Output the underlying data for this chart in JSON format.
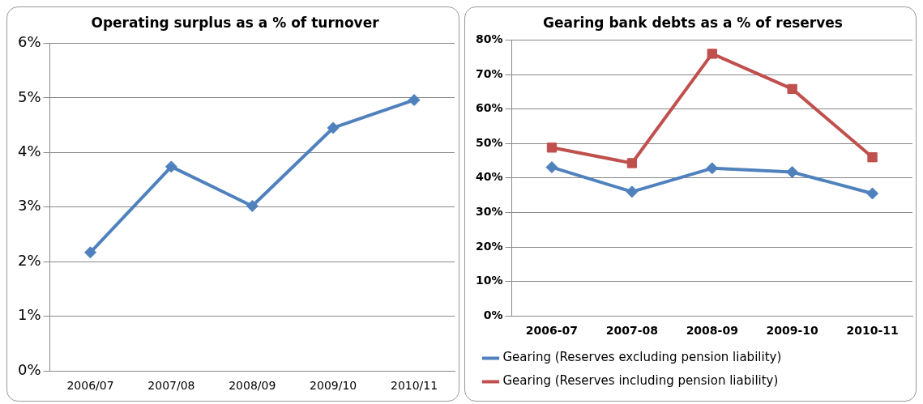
{
  "chart_data": [
    {
      "type": "line",
      "title": "Operating surplus as a % of turnover",
      "categories": [
        "2006/07",
        "2007/08",
        "2008/09",
        "2009/10",
        "2010/11"
      ],
      "series": [
        {
          "color": "#4f81bd",
          "marker": "diamond",
          "values": [
            2.17,
            3.74,
            3.02,
            4.45,
            4.96
          ]
        }
      ],
      "ylim": [
        0,
        6
      ],
      "yticks": [
        {
          "value": 0,
          "label": "0%"
        },
        {
          "value": 1,
          "label": "1%"
        },
        {
          "value": 2,
          "label": "2%"
        },
        {
          "value": 3,
          "label": "3%"
        },
        {
          "value": 4,
          "label": "4%"
        },
        {
          "value": 5,
          "label": "5%"
        },
        {
          "value": 6,
          "label": "6%"
        }
      ],
      "grid": "y",
      "legend": false
    },
    {
      "type": "line",
      "title": "Gearing bank debts as a % of reserves",
      "categories": [
        "2006-07",
        "2007-08",
        "2008-09",
        "2009-10",
        "2010-11"
      ],
      "series": [
        {
          "name": "Gearing (Reserves excluding pension liability)",
          "color": "#4f81bd",
          "marker": "diamond",
          "values": [
            43.1,
            36.0,
            42.8,
            41.7,
            35.5
          ]
        },
        {
          "name": "Gearing (Reserves including pension liability)",
          "color": "#c0504d",
          "marker": "square",
          "values": [
            48.8,
            44.3,
            76.0,
            65.8,
            46.0
          ]
        }
      ],
      "ylim": [
        0,
        80
      ],
      "yticks": [
        {
          "value": 0,
          "label": "0%"
        },
        {
          "value": 10,
          "label": "10%"
        },
        {
          "value": 20,
          "label": "20%"
        },
        {
          "value": 30,
          "label": "30%"
        },
        {
          "value": 40,
          "label": "40%"
        },
        {
          "value": 50,
          "label": "50%"
        },
        {
          "value": 60,
          "label": "60%"
        },
        {
          "value": 70,
          "label": "70%"
        },
        {
          "value": 80,
          "label": "80%"
        }
      ],
      "grid": "y",
      "legend": "bottom"
    }
  ]
}
